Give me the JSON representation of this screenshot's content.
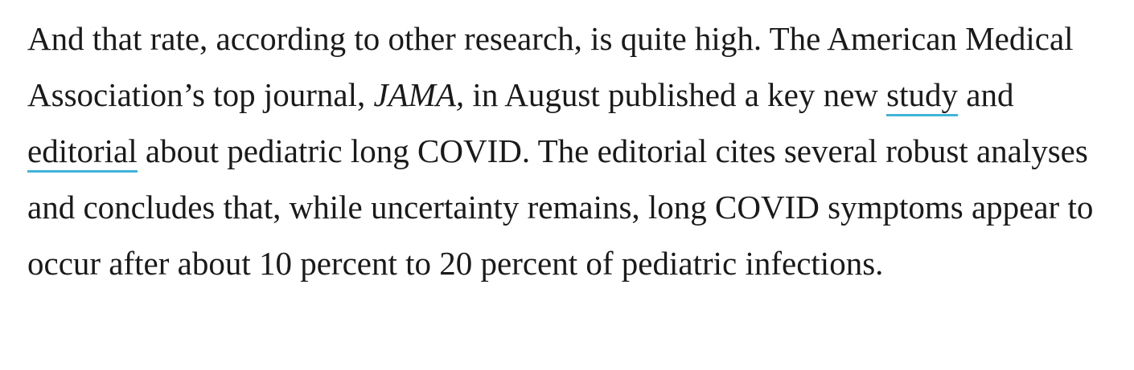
{
  "paragraph": {
    "part1": "And that rate, according to other research, is quite high. The American Medical Association’s top journal, ",
    "journal": "JAMA,",
    "part2": " in August published a key new ",
    "link_study": "study",
    "part3": " and ",
    "link_editorial": "editorial",
    "part4": " about pediatric long COVID. The editorial cites several robust analyses and concludes that, while uncertainty remains, long COVID symptoms appear to occur after about 10 percent to 20 percent of pediatric infections."
  },
  "colors": {
    "text": "#1a1a1a",
    "link_underline": "#3fb4d8",
    "background": "#ffffff"
  }
}
